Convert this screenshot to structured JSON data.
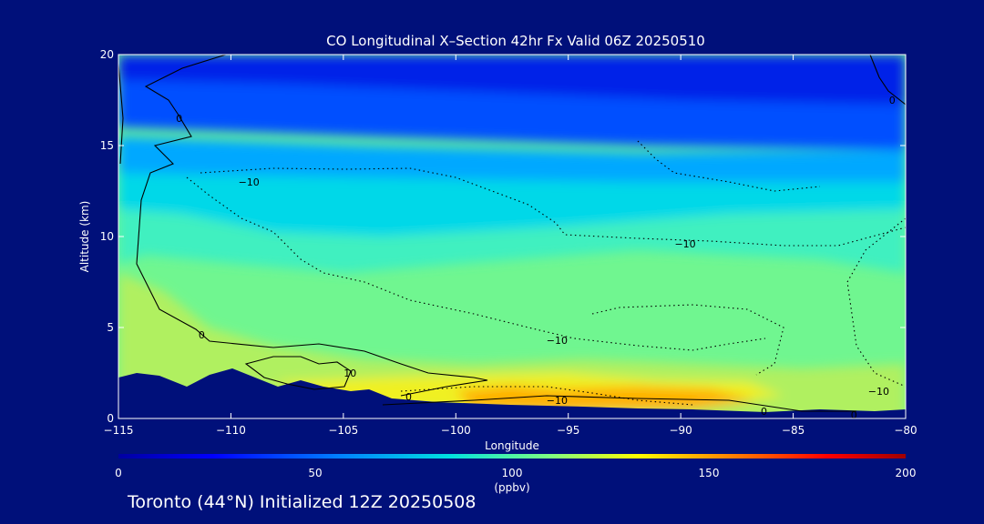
{
  "footer": "Toronto (44°N) Initialized 12Z 20250508",
  "chart_data": {
    "type": "heatmap",
    "title": "CO Longitudinal X–Section 42hr  Fx Valid 06Z 20250510",
    "xlabel": "Longitude",
    "ylabel": "Altitude (km)",
    "xlim": [
      -115,
      -80
    ],
    "ylim": [
      0,
      20
    ],
    "x_ticks": [
      -115,
      -110,
      -105,
      -100,
      -95,
      -90,
      -85,
      -80
    ],
    "x_tick_labels": [
      "−115",
      "−110",
      "−105",
      "−100",
      "−95",
      "−90",
      "−85",
      "−80"
    ],
    "y_ticks": [
      0,
      5,
      10,
      15,
      20
    ],
    "y_tick_labels": [
      "0",
      "5",
      "10",
      "15",
      "20"
    ],
    "colorbar": {
      "label": "(ppbv)",
      "range": [
        0,
        200
      ],
      "ticks": [
        0,
        50,
        100,
        150,
        200
      ],
      "tick_labels": [
        "0",
        "50",
        "100",
        "150",
        "200"
      ],
      "colors": [
        "#0000a0",
        "#0000ff",
        "#0080ff",
        "#00e0e0",
        "#80ff80",
        "#ffff00",
        "#ff8000",
        "#ff0000",
        "#a00000"
      ]
    },
    "contour_labels": [
      {
        "text": "0",
        "lon": -112.3,
        "alt": 16.5
      },
      {
        "text": "−10",
        "lon": -109.2,
        "alt": 13.0
      },
      {
        "text": "−10",
        "lon": -89.8,
        "alt": 9.6
      },
      {
        "text": "−10",
        "lon": -95.5,
        "alt": 4.3
      },
      {
        "text": "−10",
        "lon": -95.5,
        "alt": 1.0
      },
      {
        "text": "0",
        "lon": -111.3,
        "alt": 4.6
      },
      {
        "text": "10",
        "lon": -104.7,
        "alt": 2.5
      },
      {
        "text": "0",
        "lon": -102.1,
        "alt": 1.2
      },
      {
        "text": "0",
        "lon": -86.3,
        "alt": 0.4
      },
      {
        "text": "0",
        "lon": -82.3,
        "alt": 0.2
      },
      {
        "text": "−10",
        "lon": -81.2,
        "alt": 1.5
      },
      {
        "text": "0",
        "lon": -80.6,
        "alt": 17.5
      }
    ],
    "colors": {
      "background": "#00107a",
      "terrain": "#00107a"
    }
  }
}
